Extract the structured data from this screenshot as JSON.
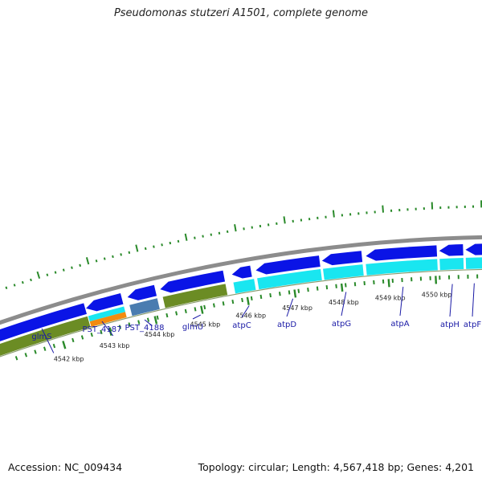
{
  "title": "Pseudomonas stutzeri A1501, complete genome",
  "footer": {
    "accession": "Accession: NC_009434",
    "summary": "Topology: circular; Length: 4,567,418 bp; Genes: 4,201"
  },
  "colors": {
    "backbone": "#8c8c8c",
    "cds": "#0a14e6",
    "olive": "#6b8c24",
    "cyan": "#19e6f0",
    "orange": "#f28c0f",
    "steel": "#4a7cb0",
    "ticks": "#2a8a2a",
    "gene_label": "#1a1aa6"
  },
  "scale_ticks": [
    {
      "label": "4542 kbp"
    },
    {
      "label": "4543 kbp"
    },
    {
      "label": "4544 kbp"
    },
    {
      "label": "4545 kbp"
    },
    {
      "label": "4546 kbp"
    },
    {
      "label": "4547 kbp"
    },
    {
      "label": "4548 kbp"
    },
    {
      "label": "4549 kbp"
    },
    {
      "label": "4550 kbp"
    }
  ],
  "genes": [
    {
      "label": "glmS"
    },
    {
      "label": "PST_4187"
    },
    {
      "label": "PST_4188"
    },
    {
      "label": "glmU"
    },
    {
      "label": "atpC"
    },
    {
      "label": "atpD"
    },
    {
      "label": "atpG"
    },
    {
      "label": "atpA"
    },
    {
      "label": "atpH"
    },
    {
      "label": "atpF"
    }
  ]
}
